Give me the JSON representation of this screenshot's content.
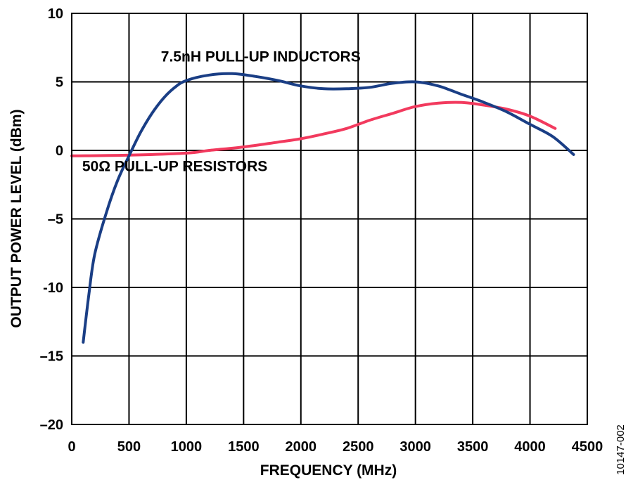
{
  "chart_data": {
    "type": "line",
    "title": "",
    "xlabel": "FREQUENCY (MHz)",
    "ylabel": "OUTPUT POWER LEVEL (dBm)",
    "xlim": [
      0,
      4500
    ],
    "ylim": [
      -20,
      10
    ],
    "x_ticks": [
      0,
      500,
      1000,
      1500,
      2000,
      2500,
      3000,
      3500,
      4000,
      4500
    ],
    "x_tick_labels": [
      "0",
      "500",
      "1000",
      "1500",
      "2000",
      "2500",
      "3000",
      "3500",
      "4000",
      "4500"
    ],
    "y_ticks": [
      10,
      5,
      0,
      -5,
      -10,
      -15,
      -20
    ],
    "y_tick_labels": [
      "10",
      "5",
      "0",
      "–5",
      "-10",
      "–15",
      "–20"
    ],
    "grid": true,
    "series": [
      {
        "name": "7.5nH PULL-UP INDUCTORS",
        "color": "#1a3e85",
        "x": [
          100,
          150,
          200,
          300,
          400,
          500,
          600,
          700,
          800,
          900,
          1000,
          1200,
          1400,
          1600,
          1800,
          2000,
          2200,
          2400,
          2600,
          2800,
          3000,
          3200,
          3400,
          3600,
          3800,
          4000,
          4200,
          4380
        ],
        "y": [
          -14,
          -10.5,
          -7.6,
          -4.6,
          -2.2,
          -0.4,
          1.3,
          2.7,
          3.8,
          4.6,
          5.1,
          5.5,
          5.6,
          5.4,
          5.1,
          4.7,
          4.5,
          4.5,
          4.6,
          4.9,
          5.0,
          4.7,
          4.1,
          3.5,
          2.8,
          1.9,
          1.0,
          -0.3
        ]
      },
      {
        "name": "50Ω PULL-UP RESISTORS",
        "color": "#f23a5e",
        "x": [
          0,
          500,
          1000,
          1200,
          1500,
          1800,
          2000,
          2200,
          2400,
          2600,
          2800,
          3000,
          3200,
          3400,
          3600,
          3800,
          4000,
          4220
        ],
        "y": [
          -0.4,
          -0.35,
          -0.2,
          0,
          0.25,
          0.6,
          0.85,
          1.2,
          1.6,
          2.2,
          2.7,
          3.2,
          3.45,
          3.5,
          3.3,
          3.0,
          2.5,
          1.6
        ]
      }
    ],
    "annotations": [
      {
        "text": "7.5nH PULL-UP INDUCTORS",
        "x": 1650,
        "y": 6.5
      },
      {
        "text": "50Ω PULL-UP RESISTORS",
        "x": 900,
        "y": -1.5
      }
    ],
    "figure_id": "10147-002"
  }
}
